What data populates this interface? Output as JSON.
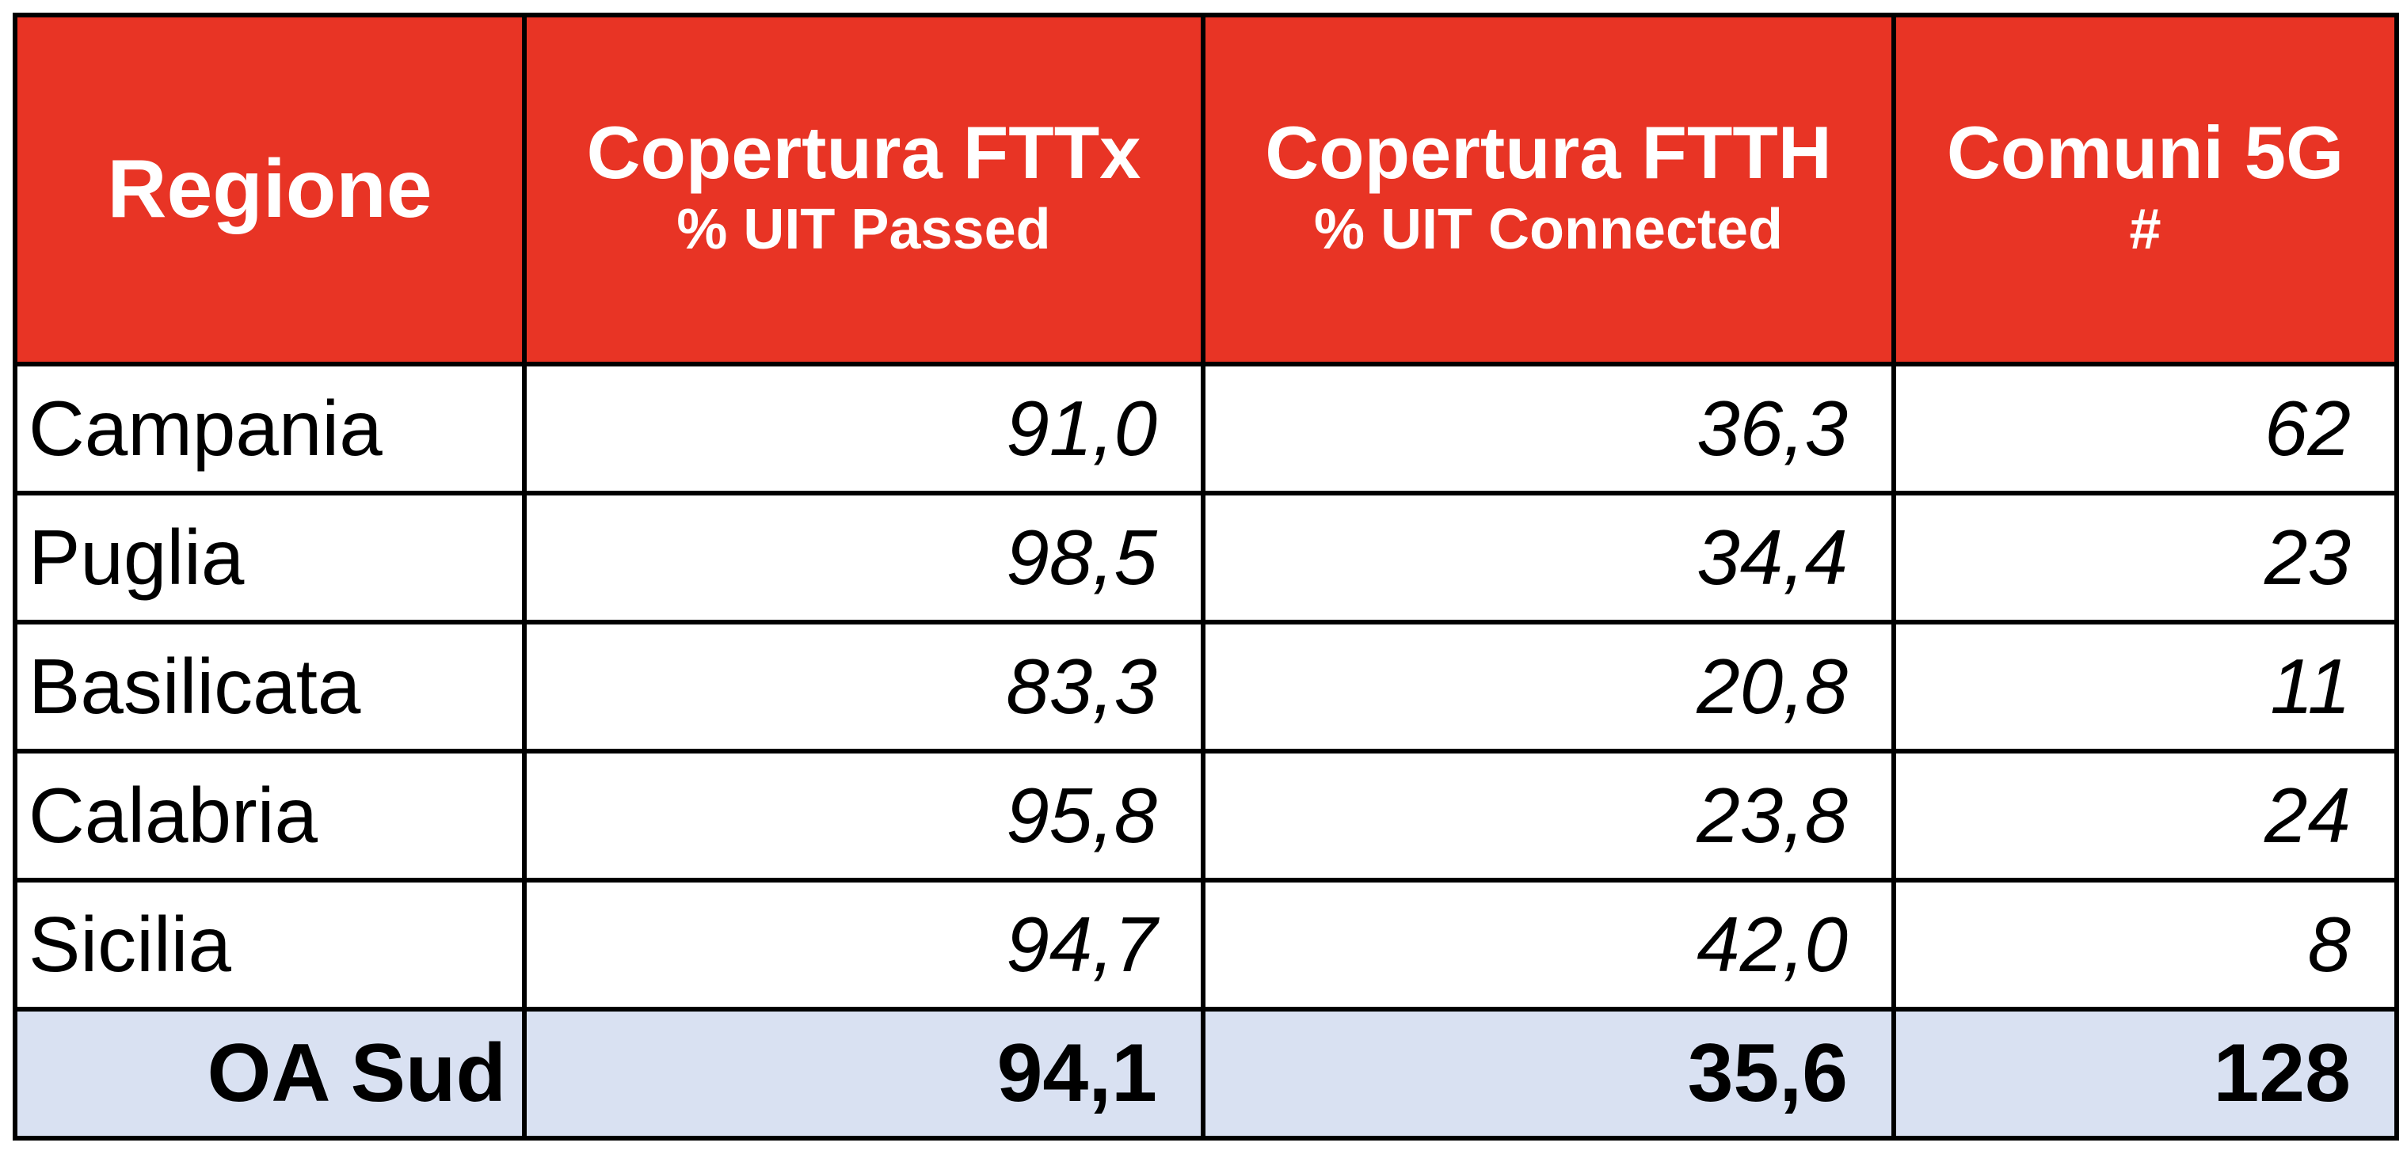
{
  "table": {
    "header": [
      {
        "title": "Regione"
      },
      {
        "title": "Copertura FTTx",
        "subtitle": "% UIT Passed"
      },
      {
        "title": "Copertura FTTH",
        "subtitle": "% UIT Connected"
      },
      {
        "title": "Comuni 5G",
        "subtitle": "#"
      }
    ],
    "rows": [
      [
        "Campania",
        "91,0",
        "36,3",
        "62"
      ],
      [
        "Puglia",
        "98,5",
        "34,4",
        "23"
      ],
      [
        "Basilicata",
        "83,3",
        "20,8",
        "11"
      ],
      [
        "Calabria",
        "95,8",
        "23,8",
        "24"
      ],
      [
        "Sicilia",
        "94,7",
        "42,0",
        "8"
      ]
    ],
    "total": [
      "OA Sud",
      "94,1",
      "35,6",
      "128"
    ]
  }
}
